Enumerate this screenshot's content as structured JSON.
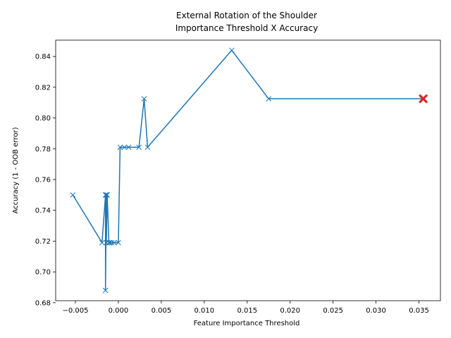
{
  "chart_data": {
    "type": "line",
    "title_lines": [
      "External Rotation of the Shoulder",
      "Importance Threshold X Accuracy"
    ],
    "xlabel": "Feature Importance Threshold",
    "ylabel": "Accuracy (1 - OOB error)",
    "xlim": [
      -0.0073,
      0.0375
    ],
    "ylim": [
      0.6813,
      0.8506
    ],
    "x_ticks": [
      -0.005,
      0.0,
      0.005,
      0.01,
      0.015,
      0.02,
      0.025,
      0.03,
      0.035
    ],
    "x_tick_labels": [
      "−0.005",
      "0.000",
      "0.005",
      "0.010",
      "0.015",
      "0.020",
      "0.025",
      "0.030",
      "0.035"
    ],
    "y_ticks": [
      0.68,
      0.7,
      0.72,
      0.74,
      0.76,
      0.78,
      0.8,
      0.82,
      0.84
    ],
    "y_tick_labels": [
      "0.68",
      "0.70",
      "0.72",
      "0.74",
      "0.76",
      "0.78",
      "0.80",
      "0.82",
      "0.84"
    ],
    "grid": false,
    "series": [
      {
        "marker": "x",
        "color": "#1f77b4",
        "x": [
          -0.0053,
          -0.0019,
          -0.0015,
          -0.0015,
          -0.0014,
          -0.0014,
          -0.0013,
          -0.0011,
          -0.001,
          -0.0008,
          -0.0005,
          0.0,
          0.0002,
          0.0007,
          0.0012,
          0.0024,
          0.003,
          0.0034,
          0.0132,
          0.0175,
          0.0355
        ],
        "y": [
          0.75,
          0.719,
          0.75,
          0.688,
          0.75,
          0.719,
          0.75,
          0.719,
          0.719,
          0.719,
          0.719,
          0.719,
          0.781,
          0.781,
          0.781,
          0.781,
          0.8125,
          0.781,
          0.844,
          0.8125,
          0.8125
        ]
      }
    ],
    "highlight": {
      "x": 0.0355,
      "y": 0.8125,
      "marker": "X",
      "color": "#d62728"
    }
  }
}
